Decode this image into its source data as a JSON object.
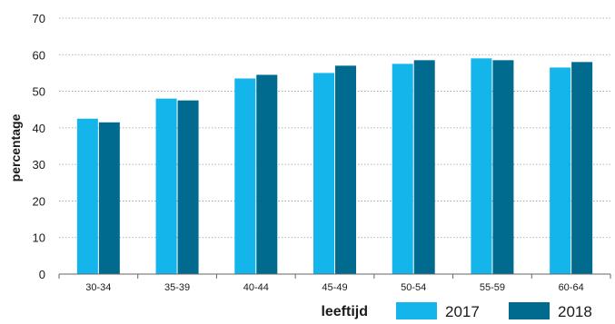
{
  "chart_data": {
    "type": "bar",
    "xlabel": "leeftijd",
    "ylabel": "percentage",
    "ylim": [
      0,
      70
    ],
    "yticks": [
      0,
      10,
      20,
      30,
      40,
      50,
      60,
      70
    ],
    "grid": true,
    "legend_position": "bottom-right",
    "categories": [
      "30-34",
      "35-39",
      "40-44",
      "45-49",
      "50-54",
      "55-59",
      "60-64"
    ],
    "series": [
      {
        "name": "2017",
        "color": "#13b5ea",
        "values": [
          42.5,
          48.0,
          53.5,
          55.0,
          57.5,
          59.0,
          56.5
        ]
      },
      {
        "name": "2018",
        "color": "#006b8f",
        "values": [
          41.5,
          47.5,
          54.5,
          57.0,
          58.5,
          58.5,
          58.0
        ]
      }
    ]
  }
}
